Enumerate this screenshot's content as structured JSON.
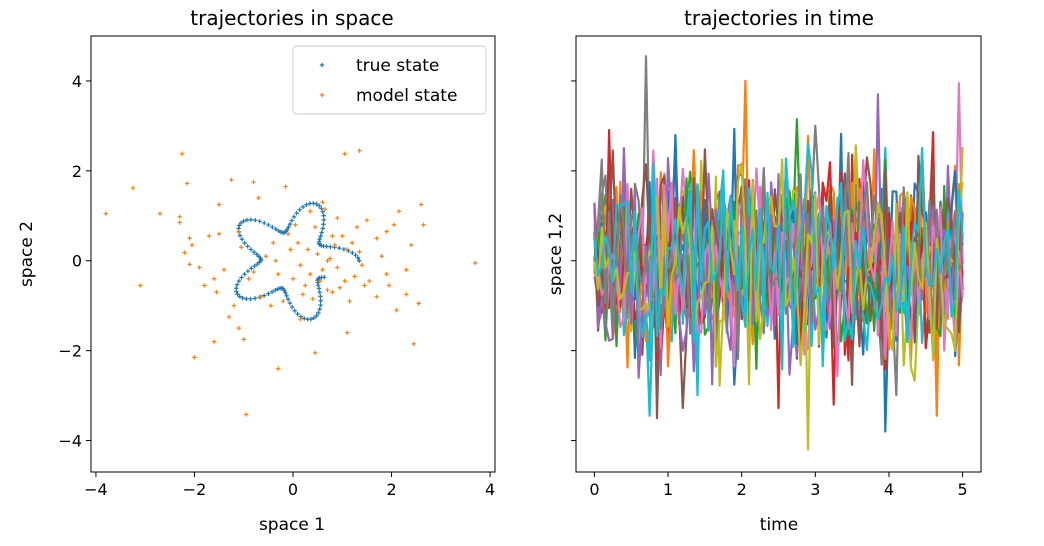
{
  "chart_data": [
    {
      "type": "scatter",
      "title": "trajectories in space",
      "xlabel": "space 1",
      "ylabel": "space 2",
      "xlim": [
        -4.1,
        4.1
      ],
      "ylim": [
        -4.7,
        5.0
      ],
      "xticks": [
        -4,
        -2,
        0,
        2,
        4
      ],
      "yticks": [
        -4,
        -2,
        0,
        2,
        4
      ],
      "xtick_labels": [
        "−4",
        "−2",
        "0",
        "2",
        "4"
      ],
      "ytick_labels": [
        "−4",
        "−2",
        "0",
        "2",
        "4"
      ],
      "grid": false,
      "legend_position": "top-right",
      "series": [
        {
          "name": "true state",
          "color": "#1f77b4",
          "curve": {
            "type": "flower",
            "base_radius": 1.0,
            "amplitude": 0.35,
            "petals": 5,
            "phase_deg": 10,
            "theta_start_deg": 0,
            "theta_end_deg": 330,
            "count": 120
          }
        },
        {
          "name": "model state",
          "color": "#ff7f0e",
          "points": [
            [
              -3.8,
              1.05
            ],
            [
              -3.25,
              1.62
            ],
            [
              -3.1,
              -0.55
            ],
            [
              -2.7,
              1.05
            ],
            [
              -2.3,
              0.98
            ],
            [
              -2.25,
              2.38
            ],
            [
              -2.15,
              1.72
            ],
            [
              -2.1,
              0.5
            ],
            [
              -2.2,
              0.18
            ],
            [
              -2.1,
              -0.08
            ],
            [
              -2.05,
              0.35
            ],
            [
              -1.9,
              -0.15
            ],
            [
              -1.8,
              -0.55
            ],
            [
              -1.6,
              -0.4
            ],
            [
              -1.55,
              -0.7
            ],
            [
              -2.0,
              -2.15
            ],
            [
              -1.6,
              -1.8
            ],
            [
              -1.4,
              -0.2
            ],
            [
              -1.5,
              0.6
            ],
            [
              -1.5,
              1.25
            ],
            [
              -1.25,
              1.8
            ],
            [
              -1.2,
              -1.0
            ],
            [
              -1.3,
              -1.25
            ],
            [
              -1.1,
              -1.5
            ],
            [
              -1.0,
              -1.75
            ],
            [
              -0.9,
              -0.4
            ],
            [
              -0.8,
              1.75
            ],
            [
              -0.7,
              1.4
            ],
            [
              -0.55,
              0.1
            ],
            [
              -0.4,
              0.4
            ],
            [
              -0.3,
              -0.3
            ],
            [
              -0.3,
              -2.4
            ],
            [
              -0.15,
              1.65
            ],
            [
              -0.1,
              0.6
            ],
            [
              -0.05,
              0.25
            ],
            [
              0.0,
              -0.4
            ],
            [
              0.05,
              0.8
            ],
            [
              0.1,
              0.4
            ],
            [
              0.15,
              -0.1
            ],
            [
              0.2,
              -0.75
            ],
            [
              0.3,
              0.25
            ],
            [
              0.35,
              -0.3
            ],
            [
              0.4,
              -0.85
            ],
            [
              0.45,
              0.75
            ],
            [
              0.5,
              0.15
            ],
            [
              0.55,
              -0.45
            ],
            [
              0.6,
              -0.2
            ],
            [
              0.6,
              1.3
            ],
            [
              0.65,
              1.15
            ],
            [
              0.7,
              -0.65
            ],
            [
              0.75,
              0.05
            ],
            [
              0.8,
              -0.7
            ],
            [
              0.85,
              0.35
            ],
            [
              0.9,
              -0.15
            ],
            [
              0.95,
              -0.6
            ],
            [
              1.0,
              0.55
            ],
            [
              1.05,
              -0.45
            ],
            [
              1.1,
              0.25
            ],
            [
              1.15,
              -0.9
            ],
            [
              1.2,
              0.4
            ],
            [
              1.3,
              0.75
            ],
            [
              1.35,
              0.2
            ],
            [
              1.4,
              -0.1
            ],
            [
              1.45,
              -0.55
            ],
            [
              1.5,
              0.9
            ],
            [
              1.55,
              -0.45
            ],
            [
              1.7,
              0.5
            ],
            [
              1.8,
              0.1
            ],
            [
              1.9,
              -0.3
            ],
            [
              1.95,
              -0.55
            ],
            [
              2.05,
              0.8
            ],
            [
              2.1,
              -1.1
            ],
            [
              2.15,
              1.1
            ],
            [
              2.3,
              -0.75
            ],
            [
              2.4,
              0.35
            ],
            [
              2.45,
              -1.85
            ],
            [
              2.55,
              -0.95
            ],
            [
              2.6,
              1.25
            ],
            [
              2.65,
              0.8
            ],
            [
              3.7,
              -0.05
            ],
            [
              1.05,
              2.38
            ],
            [
              1.35,
              2.45
            ],
            [
              0.45,
              -2.05
            ],
            [
              -0.95,
              -3.42
            ],
            [
              -0.45,
              -1.0
            ],
            [
              0.7,
              0.0
            ],
            [
              0.25,
              -0.55
            ],
            [
              -0.35,
              0.0
            ],
            [
              -0.65,
              -0.8
            ],
            [
              0.9,
              0.95
            ],
            [
              1.25,
              -0.35
            ],
            [
              -1.7,
              0.55
            ],
            [
              -2.3,
              0.85
            ],
            [
              -1.1,
              0.65
            ],
            [
              0.35,
              1.1
            ],
            [
              1.7,
              -0.8
            ],
            [
              2.3,
              -0.2
            ],
            [
              1.9,
              0.65
            ],
            [
              -0.2,
              -0.9
            ],
            [
              0.8,
              0.55
            ],
            [
              -1.05,
              0.3
            ],
            [
              0.15,
              -1.3
            ],
            [
              1.1,
              -1.6
            ],
            [
              -0.8,
              -0.25
            ]
          ]
        }
      ]
    },
    {
      "type": "line",
      "title": "trajectories in time",
      "xlabel": "time",
      "ylabel": "space 1,2",
      "xlim": [
        -0.25,
        5.25
      ],
      "ylim": [
        -4.7,
        5.0
      ],
      "xticks": [
        0,
        1,
        2,
        3,
        4,
        5
      ],
      "xtick_labels": [
        "0",
        "1",
        "2",
        "3",
        "4",
        "5"
      ],
      "yticks": [
        -4,
        -2,
        0,
        2,
        4
      ],
      "ytick_labels_shown": false,
      "grid": false,
      "legend_position": "none",
      "series_count": 20,
      "time_steps": 101,
      "t_start": 0,
      "t_end": 5,
      "palette": [
        "#1f77b4",
        "#ff7f0e",
        "#2ca02c",
        "#d62728",
        "#9467bd",
        "#8c564b",
        "#e377c2",
        "#7f7f7f",
        "#bcbd22",
        "#17becf"
      ],
      "value_range": [
        -4.2,
        4.55
      ],
      "typical_sd": 1.05,
      "peaks": [
        {
          "series": 7,
          "t": 0.7,
          "value": 4.55
        },
        {
          "series": 1,
          "t": 2.05,
          "value": 4.0
        },
        {
          "series": 8,
          "t": 2.9,
          "value": -4.2
        },
        {
          "series": 0,
          "t": 3.95,
          "value": -3.8
        },
        {
          "series": 6,
          "t": 4.95,
          "value": 3.95
        },
        {
          "series": 9,
          "t": 0.75,
          "value": -3.45
        },
        {
          "series": 5,
          "t": 0.85,
          "value": -3.5
        },
        {
          "series": 1,
          "t": 4.65,
          "value": -3.45
        },
        {
          "series": 3,
          "t": 3.25,
          "value": -3.2
        },
        {
          "series": 2,
          "t": 2.75,
          "value": 3.15
        },
        {
          "series": 4,
          "t": 3.85,
          "value": 3.7
        }
      ]
    }
  ]
}
